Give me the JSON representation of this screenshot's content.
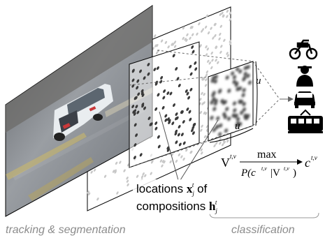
{
  "labels": {
    "locations_prefix": "locations ",
    "locations_var": "x",
    "locations_sub": "j",
    "locations_sup": "t",
    "locations_suffix": " of",
    "compositions_prefix": "compositions ",
    "compositions_var": "h",
    "compositions_sub": "j",
    "compositions_sup": "t",
    "u_right": "u",
    "u_bottom": "u",
    "formula_left": "V",
    "formula_left_sup": "t,v",
    "formula_op": "max",
    "formula_under": "P(c",
    "formula_under_sup": "t,v",
    "formula_under_mid": "|V",
    "formula_under_sup2": "t,v",
    "formula_under_end": ")",
    "formula_right": "c",
    "formula_right_sup": "t,v",
    "stage_left": "tracking & segmentation",
    "stage_right": "classification"
  },
  "class_icons": [
    "bicycle-icon",
    "person-icon",
    "car-icon",
    "tram-icon"
  ],
  "colors": {
    "road": "#8a8e94",
    "car": "#e8ecef",
    "dots_light": "#c4c4c4",
    "dots_dark": "#3a3a3a",
    "caption": "#8c8c8c"
  }
}
